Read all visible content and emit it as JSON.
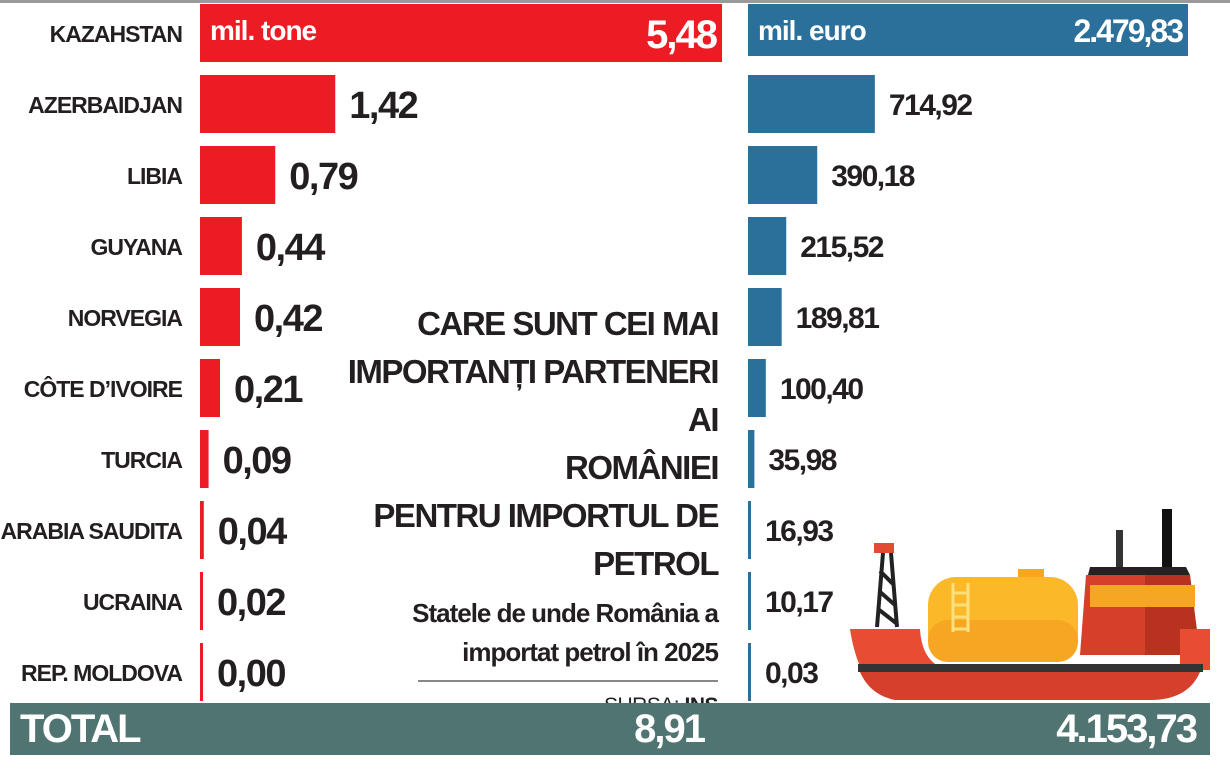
{
  "chart_data": {
    "type": "bar",
    "orientation": "horizontal",
    "title": "CARE SUNT CEI MAI IMPORTANȚI PARTENERI AI ROMÂNIEI PENTRU IMPORTUL DE PETROL",
    "title_lines": [
      "CARE SUNT CEI MAI",
      "IMPORTANȚI PARTENERI AI",
      "ROMÂNIEI",
      "PENTRU IMPORTUL DE",
      "PETROL"
    ],
    "subtitle_lines": [
      "Statele de unde România a",
      "importat petrol în 2025"
    ],
    "source_label": "SURSA:",
    "source_value": "INS",
    "categories": [
      "KAZAHSTAN",
      "AZERBAIDJAN",
      "LIBIA",
      "GUYANA",
      "NORVEGIA",
      "CÔTE D’IVOIRE",
      "TURCIA",
      "ARABIA SAUDITA",
      "UCRAINA",
      "REP. MOLDOVA"
    ],
    "series": [
      {
        "name": "mil. tone",
        "color": "#ed1c24",
        "values": [
          5.48,
          1.42,
          0.79,
          0.44,
          0.42,
          0.21,
          0.09,
          0.04,
          0.02,
          0.0
        ],
        "labels": [
          "5,48",
          "1,42",
          "0,79",
          "0,44",
          "0,42",
          "0,21",
          "0,09",
          "0,04",
          "0,02",
          "0,00"
        ]
      },
      {
        "name": "mil. euro",
        "color": "#2a709b",
        "values": [
          2479.83,
          714.92,
          390.18,
          215.52,
          189.81,
          100.4,
          35.98,
          16.93,
          10.17,
          0.03
        ],
        "labels": [
          "2.479,83",
          "714,92",
          "390,18",
          "215,52",
          "189,81",
          "100,40",
          "35,98",
          "16,93",
          "10,17",
          "0,03"
        ]
      }
    ],
    "total": {
      "label": "TOTAL",
      "tone": "8,91",
      "euro": "4.153,73",
      "color": "#4f7472"
    },
    "grid": false,
    "legend": "none"
  },
  "illustration": "oil-tanker-ship"
}
